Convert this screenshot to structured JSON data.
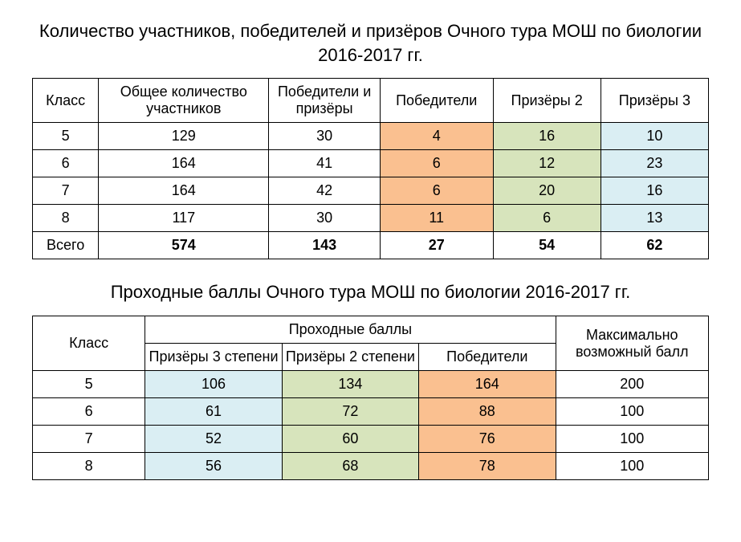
{
  "colors": {
    "orange": "#fac090",
    "green": "#d7e4bc",
    "blue": "#daeef3",
    "border": "#000000",
    "background": "#ffffff",
    "text": "#000000"
  },
  "typography": {
    "font_family": "Arial",
    "title_fontsize": 22,
    "cell_fontsize": 18
  },
  "table1": {
    "type": "table",
    "title": "Количество участников, победителей и призёров Очного тура МОШ по биологии 2016-2017 гг.",
    "columns": [
      {
        "label": "Класс"
      },
      {
        "label": "Общее количество участников"
      },
      {
        "label": "Победители и призёры"
      },
      {
        "label": "Победители",
        "body_color": "orange"
      },
      {
        "label": "Призёры 2",
        "body_color": "green"
      },
      {
        "label": "Призёры 3",
        "body_color": "blue"
      }
    ],
    "rows": [
      {
        "grade": "5",
        "total": "129",
        "wp": "30",
        "winners": "4",
        "p2": "16",
        "p3": "10"
      },
      {
        "grade": "6",
        "total": "164",
        "wp": "41",
        "winners": "6",
        "p2": "12",
        "p3": "23"
      },
      {
        "grade": "7",
        "total": "164",
        "wp": "42",
        "winners": "6",
        "p2": "20",
        "p3": "16"
      },
      {
        "grade": "8",
        "total": "117",
        "wp": "30",
        "winners": "11",
        "p2": "6",
        "p3": "13"
      }
    ],
    "total_row": {
      "grade": "Всего",
      "total": "574",
      "wp": "143",
      "winners": "27",
      "p2": "54",
      "p3": "62"
    }
  },
  "table2": {
    "type": "table",
    "title": "Проходные баллы Очного тура МОШ по биологии 2016-2017 гг.",
    "header": {
      "grade": "Класс",
      "scores_group": "Проходные баллы",
      "p3": "Призёры 3 степени",
      "p2": "Призёры 2 степени",
      "winners": "Победители",
      "max": "Максимально возможный балл"
    },
    "column_colors": {
      "p3": "blue",
      "p2": "green",
      "winners": "orange"
    },
    "rows": [
      {
        "grade": "5",
        "p3": "106",
        "p2": "134",
        "winners": "164",
        "max": "200"
      },
      {
        "grade": "6",
        "p3": "61",
        "p2": "72",
        "winners": "88",
        "max": "100"
      },
      {
        "grade": "7",
        "p3": "52",
        "p2": "60",
        "winners": "76",
        "max": "100"
      },
      {
        "grade": "8",
        "p3": "56",
        "p2": "68",
        "winners": "78",
        "max": "100"
      }
    ]
  }
}
